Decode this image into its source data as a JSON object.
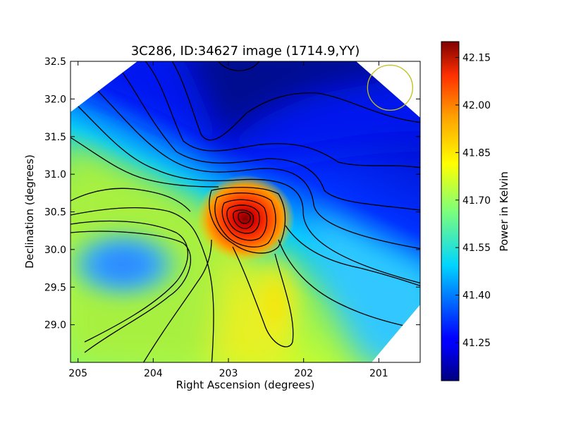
{
  "chart_data": {
    "type": "heatmap",
    "title": "3C286, ID:34627 image (1714.9,YY)",
    "xlabel": "Right Ascension (degrees)",
    "ylabel": "Declination (degrees)",
    "xlim": [
      205.1,
      200.45
    ],
    "ylim": [
      28.5,
      32.5
    ],
    "x_ticks": [
      205,
      204,
      203,
      202,
      201
    ],
    "x_tick_labels": [
      "205",
      "204",
      "203",
      "202",
      "201"
    ],
    "y_ticks": [
      29.0,
      29.5,
      30.0,
      30.5,
      31.0,
      31.5,
      32.0,
      32.5
    ],
    "y_tick_labels": [
      "29.0",
      "29.5",
      "30.0",
      "30.5",
      "31.0",
      "31.5",
      "32.0",
      "32.5"
    ],
    "colormap": "jet",
    "colorbar": {
      "label": "Power in Kelvin",
      "range": [
        41.13,
        42.2
      ],
      "ticks": [
        41.25,
        41.4,
        41.55,
        41.7,
        41.85,
        42.0,
        42.15
      ],
      "tick_labels": [
        "41.25",
        "41.40",
        "41.55",
        "41.70",
        "41.85",
        "42.00",
        "42.15"
      ]
    },
    "field_summary": {
      "peak": {
        "ra": 202.75,
        "dec": 30.45,
        "value": 42.18
      },
      "minimum_region": {
        "ra": 202.9,
        "dec": 32.45,
        "value": 41.14
      },
      "cool_pocket": {
        "ra": 204.6,
        "dec": 29.95,
        "value": 41.43
      },
      "warm_ridge": {
        "ra": 202.35,
        "dec": 29.3,
        "value": 41.78
      },
      "background_low": {
        "ra": 201.0,
        "dec": 31.4,
        "value": 41.21
      }
    },
    "beam_circle": {
      "ra": 200.85,
      "dec": 32.15,
      "color": "#bfbf1a"
    },
    "contours": "black",
    "grid": false
  }
}
